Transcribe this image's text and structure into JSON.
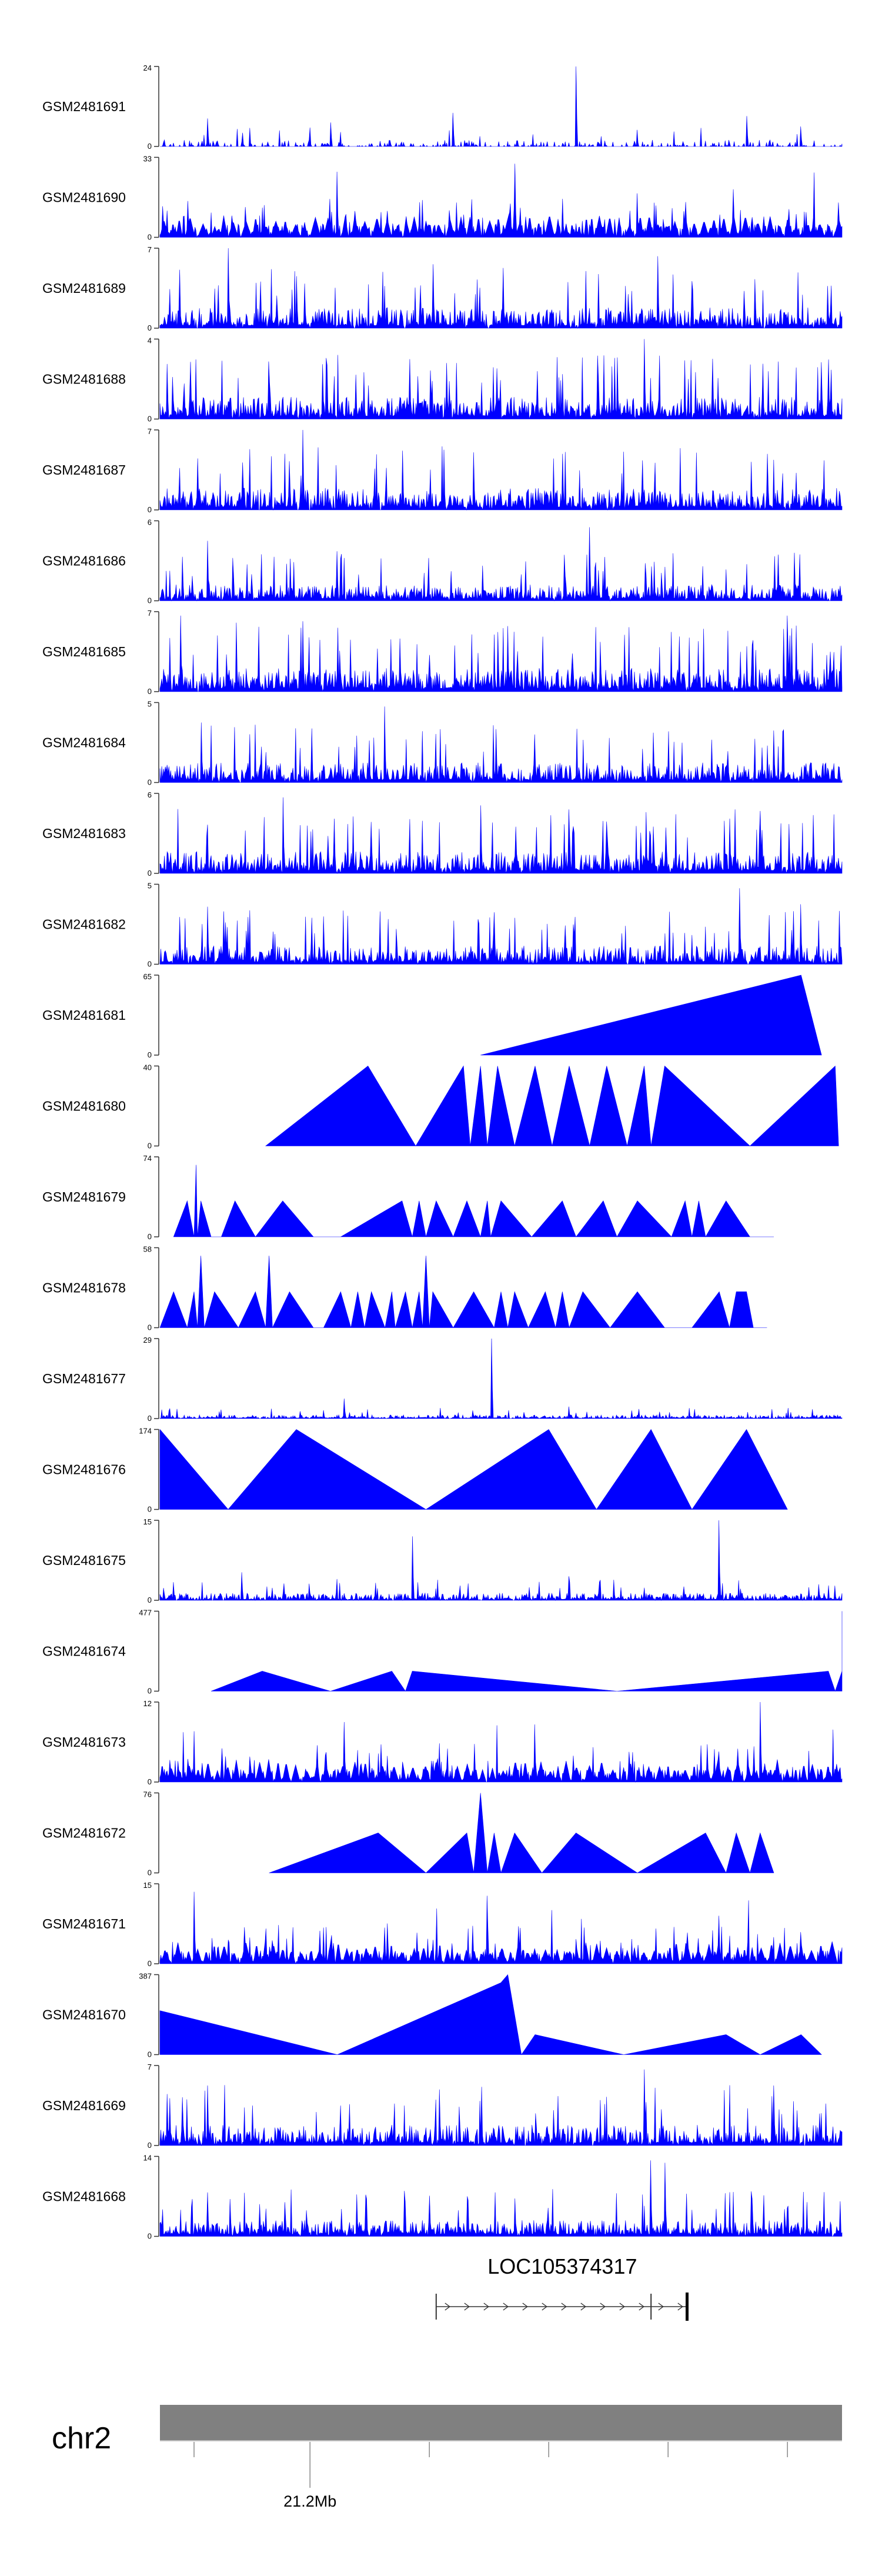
{
  "colors": {
    "signal": "#0000ff",
    "axis": "#333333",
    "text": "#000000",
    "chromosome_bar": "#808080"
  },
  "chart_data": {
    "type": "area",
    "title": "",
    "description_level": "genome coverage tracks (approximate profiles)",
    "tracks": [
      {
        "name": "GSM2481691",
        "ymax": "24",
        "ymin": "0",
        "max": 24,
        "style": "noise",
        "level": 0.09,
        "density": 0.35,
        "seed": 11,
        "spikes": [
          [
            0.07,
            0.35
          ],
          [
            0.25,
            0.3
          ],
          [
            0.43,
            0.42
          ],
          [
            0.61,
            1.0
          ],
          [
            0.86,
            0.38
          ],
          [
            0.94,
            0.25
          ]
        ]
      },
      {
        "name": "GSM2481690",
        "ymax": "33",
        "ymin": "0",
        "max": 33,
        "style": "peaks",
        "level": 0.3,
        "density": 0.9,
        "seed": 22,
        "spikes": [
          [
            0.26,
            0.82
          ],
          [
            0.52,
            0.92
          ],
          [
            0.7,
            0.55
          ],
          [
            0.84,
            0.6
          ]
        ]
      },
      {
        "name": "GSM2481689",
        "ymax": "7",
        "ymin": "0",
        "max": 7,
        "style": "noise",
        "level": 0.28,
        "density": 0.95,
        "seed": 33,
        "spikes": [
          [
            0.1,
            1.0
          ],
          [
            0.2,
            0.65
          ],
          [
            0.4,
            0.8
          ],
          [
            0.73,
            0.9
          ]
        ]
      },
      {
        "name": "GSM2481688",
        "ymax": "4",
        "ymin": "0",
        "max": 4,
        "style": "noise",
        "level": 0.3,
        "density": 0.95,
        "seed": 44,
        "spikes": [
          [
            0.71,
            1.0
          ],
          [
            0.16,
            0.72
          ],
          [
            0.42,
            0.7
          ]
        ]
      },
      {
        "name": "GSM2481687",
        "ymax": "7",
        "ymin": "0",
        "max": 7,
        "style": "noise",
        "level": 0.3,
        "density": 0.95,
        "seed": 55,
        "spikes": [
          [
            0.21,
            1.0
          ],
          [
            0.46,
            0.72
          ],
          [
            0.59,
            0.7
          ],
          [
            0.89,
            0.7
          ]
        ]
      },
      {
        "name": "GSM2481686",
        "ymax": "6",
        "ymin": "0",
        "max": 6,
        "style": "noise",
        "level": 0.22,
        "density": 0.95,
        "seed": 66,
        "spikes": [
          [
            0.07,
            0.75
          ],
          [
            0.26,
            0.62
          ],
          [
            0.63,
            0.92
          ],
          [
            0.93,
            0.6
          ]
        ]
      },
      {
        "name": "GSM2481685",
        "ymax": "7",
        "ymin": "0",
        "max": 7,
        "style": "noise",
        "level": 0.32,
        "density": 0.95,
        "seed": 77,
        "spikes": [
          [
            0.03,
            0.95
          ],
          [
            0.21,
            0.88
          ],
          [
            0.51,
            0.82
          ],
          [
            0.92,
            0.95
          ]
        ]
      },
      {
        "name": "GSM2481684",
        "ymax": "5",
        "ymin": "0",
        "max": 5,
        "style": "noise",
        "level": 0.27,
        "density": 0.95,
        "seed": 88,
        "spikes": [
          [
            0.33,
            0.95
          ],
          [
            0.06,
            0.75
          ],
          [
            0.55,
            0.6
          ],
          [
            0.9,
            0.65
          ]
        ]
      },
      {
        "name": "GSM2481683",
        "ymax": "6",
        "ymin": "0",
        "max": 6,
        "style": "noise",
        "level": 0.3,
        "density": 0.95,
        "seed": 99,
        "spikes": [
          [
            0.18,
            0.95
          ],
          [
            0.47,
            0.85
          ],
          [
            0.6,
            0.8
          ],
          [
            0.88,
            0.78
          ]
        ]
      },
      {
        "name": "GSM2481682",
        "ymax": "5",
        "ymin": "0",
        "max": 5,
        "style": "noise",
        "level": 0.25,
        "density": 0.95,
        "seed": 111,
        "spikes": [
          [
            0.85,
            0.95
          ],
          [
            0.07,
            0.72
          ],
          [
            0.49,
            0.65
          ],
          [
            0.94,
            0.75
          ]
        ]
      },
      {
        "name": "GSM2481681",
        "ymax": "65",
        "ymin": "0",
        "max": 65,
        "style": "vertices",
        "seed": 0,
        "points": [
          [
            0.47,
            0.0
          ],
          [
            0.94,
            1.0
          ],
          [
            0.97,
            0.0
          ]
        ]
      },
      {
        "name": "GSM2481680",
        "ymax": "40",
        "ymin": "0",
        "max": 40,
        "style": "vertices",
        "seed": 0,
        "points": [
          [
            0.155,
            0.0
          ],
          [
            0.305,
            1.0
          ],
          [
            0.375,
            0.0
          ],
          [
            0.445,
            1.0
          ],
          [
            0.455,
            0.0
          ],
          [
            0.47,
            1.0
          ],
          [
            0.48,
            0.0
          ],
          [
            0.495,
            1.0
          ],
          [
            0.52,
            0.0
          ],
          [
            0.55,
            1.0
          ],
          [
            0.575,
            0.0
          ],
          [
            0.6,
            1.0
          ],
          [
            0.63,
            0.0
          ],
          [
            0.655,
            1.0
          ],
          [
            0.685,
            0.0
          ],
          [
            0.71,
            1.0
          ],
          [
            0.72,
            0.0
          ],
          [
            0.74,
            1.0
          ],
          [
            0.865,
            0.0
          ],
          [
            0.99,
            1.0
          ],
          [
            0.995,
            0.0
          ]
        ]
      },
      {
        "name": "GSM2481679",
        "ymax": "74",
        "ymin": "0",
        "max": 74,
        "style": "vertices",
        "seed": 0,
        "points": [
          [
            0.02,
            0.0
          ],
          [
            0.04,
            0.45
          ],
          [
            0.05,
            0.0
          ],
          [
            0.053,
            0.9
          ],
          [
            0.055,
            0.0
          ],
          [
            0.06,
            0.45
          ],
          [
            0.075,
            0.0
          ],
          [
            0.09,
            0.0
          ],
          [
            0.11,
            0.45
          ],
          [
            0.14,
            0.0
          ],
          [
            0.18,
            0.45
          ],
          [
            0.225,
            0.0
          ],
          [
            0.265,
            0.0
          ],
          [
            0.355,
            0.45
          ],
          [
            0.37,
            0.0
          ],
          [
            0.38,
            0.45
          ],
          [
            0.39,
            0.0
          ],
          [
            0.405,
            0.45
          ],
          [
            0.43,
            0.0
          ],
          [
            0.45,
            0.45
          ],
          [
            0.47,
            0.0
          ],
          [
            0.48,
            0.45
          ],
          [
            0.485,
            0.0
          ],
          [
            0.5,
            0.45
          ],
          [
            0.545,
            0.0
          ],
          [
            0.59,
            0.45
          ],
          [
            0.61,
            0.0
          ],
          [
            0.65,
            0.45
          ],
          [
            0.67,
            0.0
          ],
          [
            0.7,
            0.45
          ],
          [
            0.75,
            0.0
          ],
          [
            0.77,
            0.45
          ],
          [
            0.78,
            0.0
          ],
          [
            0.79,
            0.45
          ],
          [
            0.8,
            0.0
          ],
          [
            0.83,
            0.45
          ],
          [
            0.865,
            0.0
          ],
          [
            0.9,
            0.0
          ]
        ]
      },
      {
        "name": "GSM2481678",
        "ymax": "58",
        "ymin": "0",
        "max": 58,
        "style": "vertices",
        "seed": 0,
        "points": [
          [
            0.0,
            0.0
          ],
          [
            0.02,
            0.45
          ],
          [
            0.04,
            0.0
          ],
          [
            0.05,
            0.45
          ],
          [
            0.055,
            0.0
          ],
          [
            0.06,
            0.9
          ],
          [
            0.065,
            0.0
          ],
          [
            0.08,
            0.45
          ],
          [
            0.115,
            0.0
          ],
          [
            0.14,
            0.45
          ],
          [
            0.155,
            0.0
          ],
          [
            0.16,
            0.9
          ],
          [
            0.165,
            0.0
          ],
          [
            0.19,
            0.45
          ],
          [
            0.225,
            0.0
          ],
          [
            0.24,
            0.0
          ],
          [
            0.265,
            0.45
          ],
          [
            0.28,
            0.0
          ],
          [
            0.29,
            0.45
          ],
          [
            0.3,
            0.0
          ],
          [
            0.31,
            0.45
          ],
          [
            0.33,
            0.0
          ],
          [
            0.34,
            0.45
          ],
          [
            0.345,
            0.0
          ],
          [
            0.36,
            0.45
          ],
          [
            0.37,
            0.0
          ],
          [
            0.38,
            0.45
          ],
          [
            0.385,
            0.0
          ],
          [
            0.39,
            0.9
          ],
          [
            0.395,
            0.0
          ],
          [
            0.4,
            0.45
          ],
          [
            0.43,
            0.0
          ],
          [
            0.46,
            0.45
          ],
          [
            0.49,
            0.0
          ],
          [
            0.5,
            0.45
          ],
          [
            0.51,
            0.0
          ],
          [
            0.52,
            0.45
          ],
          [
            0.54,
            0.0
          ],
          [
            0.565,
            0.45
          ],
          [
            0.58,
            0.0
          ],
          [
            0.59,
            0.45
          ],
          [
            0.6,
            0.0
          ],
          [
            0.62,
            0.45
          ],
          [
            0.66,
            0.0
          ],
          [
            0.7,
            0.45
          ],
          [
            0.74,
            0.0
          ],
          [
            0.78,
            0.0
          ],
          [
            0.82,
            0.45
          ],
          [
            0.835,
            0.0
          ],
          [
            0.845,
            0.45
          ],
          [
            0.86,
            0.45
          ],
          [
            0.87,
            0.0
          ],
          [
            0.89,
            0.0
          ]
        ]
      },
      {
        "name": "GSM2481677",
        "ymax": "29",
        "ymin": "0",
        "max": 29,
        "style": "noise",
        "level": 0.05,
        "density": 0.95,
        "seed": 122,
        "spikes": [
          [
            0.486,
            1.0
          ],
          [
            0.27,
            0.25
          ],
          [
            0.6,
            0.15
          ]
        ]
      },
      {
        "name": "GSM2481676",
        "ymax": "174",
        "ymin": "0",
        "max": 174,
        "style": "vertices",
        "seed": 0,
        "points": [
          [
            0.0,
            0.0
          ],
          [
            0.0,
            1.0
          ],
          [
            0.1,
            0.0
          ],
          [
            0.2,
            1.0
          ],
          [
            0.39,
            0.0
          ],
          [
            0.57,
            1.0
          ],
          [
            0.64,
            0.0
          ],
          [
            0.72,
            1.0
          ],
          [
            0.78,
            0.0
          ],
          [
            0.86,
            1.0
          ],
          [
            0.92,
            0.0
          ]
        ]
      },
      {
        "name": "GSM2481675",
        "ymax": "15",
        "ymin": "0",
        "max": 15,
        "style": "noise",
        "level": 0.1,
        "density": 0.9,
        "seed": 133,
        "spikes": [
          [
            0.82,
            1.0
          ],
          [
            0.37,
            0.8
          ],
          [
            0.12,
            0.35
          ],
          [
            0.6,
            0.3
          ]
        ]
      },
      {
        "name": "GSM2481674",
        "ymax": "477",
        "ymin": "0",
        "max": 477,
        "style": "vertices",
        "seed": 0,
        "points": [
          [
            0.075,
            0.0
          ],
          [
            0.15,
            0.25
          ],
          [
            0.25,
            0.0
          ],
          [
            0.34,
            0.25
          ],
          [
            0.36,
            0.0
          ],
          [
            0.37,
            0.25
          ],
          [
            0.67,
            0.0
          ],
          [
            0.98,
            0.25
          ],
          [
            0.99,
            0.0
          ],
          [
            1.0,
            0.25
          ],
          [
            1.0,
            1.0
          ],
          [
            1.0,
            0.0
          ]
        ]
      },
      {
        "name": "GSM2481673",
        "ymax": "12",
        "ymin": "0",
        "max": 12,
        "style": "peaks",
        "level": 0.3,
        "density": 0.9,
        "seed": 144,
        "spikes": [
          [
            0.88,
            1.0
          ],
          [
            0.27,
            0.75
          ],
          [
            0.55,
            0.72
          ]
        ]
      },
      {
        "name": "GSM2481672",
        "ymax": "76",
        "ymin": "0",
        "max": 76,
        "style": "vertices",
        "seed": 0,
        "points": [
          [
            0.16,
            0.0
          ],
          [
            0.32,
            0.5
          ],
          [
            0.39,
            0.0
          ],
          [
            0.45,
            0.5
          ],
          [
            0.46,
            0.0
          ],
          [
            0.47,
            1.0
          ],
          [
            0.48,
            0.0
          ],
          [
            0.49,
            0.5
          ],
          [
            0.5,
            0.0
          ],
          [
            0.52,
            0.5
          ],
          [
            0.56,
            0.0
          ],
          [
            0.61,
            0.5
          ],
          [
            0.7,
            0.0
          ],
          [
            0.8,
            0.5
          ],
          [
            0.83,
            0.0
          ],
          [
            0.845,
            0.5
          ],
          [
            0.865,
            0.0
          ],
          [
            0.88,
            0.5
          ],
          [
            0.9,
            0.0
          ]
        ]
      },
      {
        "name": "GSM2481671",
        "ymax": "15",
        "ymin": "0",
        "max": 15,
        "style": "peaks",
        "level": 0.3,
        "density": 0.95,
        "seed": 155,
        "spikes": [
          [
            0.05,
            0.9
          ],
          [
            0.48,
            0.85
          ],
          [
            0.82,
            0.6
          ]
        ]
      },
      {
        "name": "GSM2481670",
        "ymax": "387",
        "ymin": "0",
        "max": 387,
        "style": "vertices",
        "seed": 0,
        "points": [
          [
            0.0,
            0.0
          ],
          [
            0.0,
            0.55
          ],
          [
            0.26,
            0.0
          ],
          [
            0.5,
            0.9
          ],
          [
            0.51,
            1.0
          ],
          [
            0.53,
            0.0
          ],
          [
            0.55,
            0.25
          ],
          [
            0.68,
            0.0
          ],
          [
            0.83,
            0.25
          ],
          [
            0.88,
            0.0
          ],
          [
            0.94,
            0.25
          ],
          [
            0.97,
            0.0
          ]
        ]
      },
      {
        "name": "GSM2481669",
        "ymax": "7",
        "ymin": "0",
        "max": 7,
        "style": "noise",
        "level": 0.28,
        "density": 0.95,
        "seed": 166,
        "spikes": [
          [
            0.71,
            0.95
          ],
          [
            0.07,
            0.75
          ],
          [
            0.41,
            0.7
          ],
          [
            0.9,
            0.75
          ]
        ]
      },
      {
        "name": "GSM2481668",
        "ymax": "14",
        "ymin": "0",
        "max": 14,
        "style": "noise",
        "level": 0.22,
        "density": 0.95,
        "seed": 177,
        "spikes": [
          [
            0.72,
            0.95
          ],
          [
            0.74,
            0.92
          ],
          [
            0.07,
            0.55
          ],
          [
            0.45,
            0.5
          ]
        ]
      }
    ],
    "gene": {
      "name": "LOC105374317",
      "start": 0.405,
      "end": 0.775,
      "exon2_start": 0.72,
      "strand": "+"
    },
    "chromosome": {
      "name": "chr2",
      "tick_label": "21.2Mb",
      "tick_label_index": 1,
      "ticks": [
        0.05,
        0.22,
        0.395,
        0.57,
        0.745,
        0.92
      ]
    }
  }
}
